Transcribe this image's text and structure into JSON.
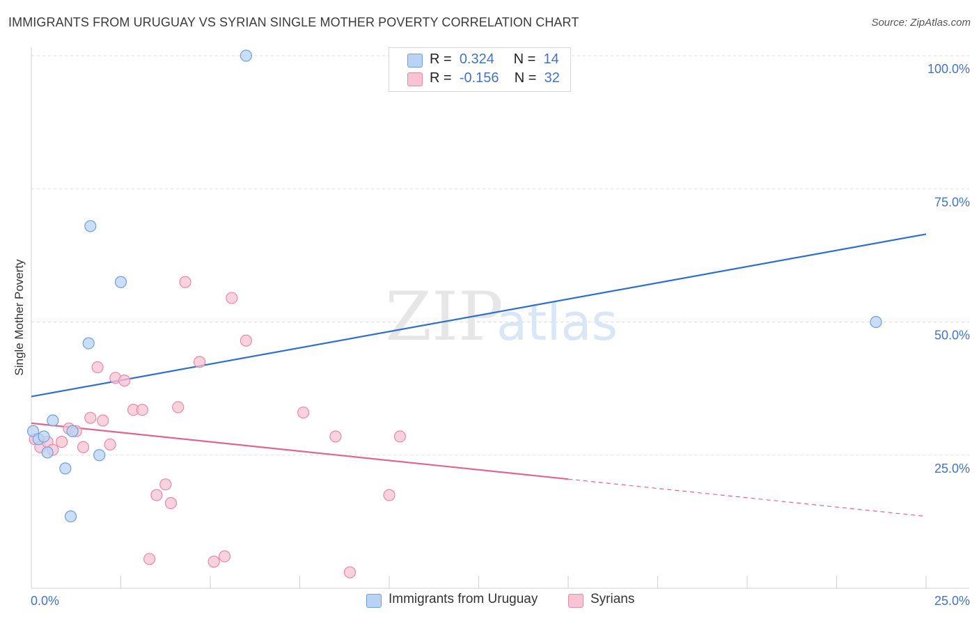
{
  "title": "IMMIGRANTS FROM URUGUAY VS SYRIAN SINGLE MOTHER POVERTY CORRELATION CHART",
  "source": "Source: ZipAtlas.com",
  "watermark": {
    "zip": "ZIP",
    "atlas": "atlas"
  },
  "legend": {
    "uruguay": {
      "r_label": "R =",
      "r_value": "0.324",
      "n_label": "N =",
      "n_value": "14"
    },
    "syrians": {
      "r_label": "R =",
      "r_value": "-0.156",
      "n_label": "N =",
      "n_value": "32"
    }
  },
  "colors": {
    "uruguay_fill": "#b9d3f5",
    "uruguay_stroke": "#6e9fd8",
    "uruguay_line": "#2f6fcb",
    "syrians_fill": "#f8c3d3",
    "syrians_stroke": "#e58aa6",
    "syrians_line": "#e0648f",
    "tick_label": "#4472c4",
    "grid": "#dddddd"
  },
  "chart_data": {
    "type": "scatter",
    "xlabel": "",
    "ylabel": "Single Mother Poverty",
    "xlim": [
      0,
      25
    ],
    "ylim": [
      0,
      100
    ],
    "x_tick_labels": [
      "0.0%",
      "25.0%"
    ],
    "y_ticks": [
      25,
      50,
      75,
      100
    ],
    "y_tick_labels": [
      "25.0%",
      "50.0%",
      "75.0%",
      "100.0%"
    ],
    "series": [
      {
        "name": "Immigrants from Uruguay",
        "color_key": "uruguay",
        "points": [
          [
            0.05,
            29.5
          ],
          [
            0.2,
            28.0
          ],
          [
            0.35,
            28.5
          ],
          [
            0.45,
            25.5
          ],
          [
            0.6,
            31.5
          ],
          [
            0.95,
            22.5
          ],
          [
            1.15,
            29.5
          ],
          [
            1.1,
            13.5
          ],
          [
            1.6,
            46.0
          ],
          [
            1.65,
            68.0
          ],
          [
            1.9,
            25.0
          ],
          [
            2.5,
            57.5
          ],
          [
            6.0,
            100.0
          ],
          [
            23.6,
            50.0
          ]
        ],
        "trend": {
          "x0": 0,
          "y0": 36.0,
          "x1": 25,
          "y1": 66.5,
          "solid_to": 25
        }
      },
      {
        "name": "Syrians",
        "color_key": "syrians",
        "points": [
          [
            0.1,
            28.0
          ],
          [
            0.25,
            26.5
          ],
          [
            0.45,
            27.5
          ],
          [
            0.6,
            26.0
          ],
          [
            0.85,
            27.5
          ],
          [
            1.05,
            30.0
          ],
          [
            1.25,
            29.5
          ],
          [
            1.45,
            26.5
          ],
          [
            1.65,
            32.0
          ],
          [
            1.85,
            41.5
          ],
          [
            2.0,
            31.5
          ],
          [
            2.2,
            27.0
          ],
          [
            2.35,
            39.5
          ],
          [
            2.6,
            39.0
          ],
          [
            2.85,
            33.5
          ],
          [
            3.1,
            33.5
          ],
          [
            3.3,
            5.5
          ],
          [
            3.5,
            17.5
          ],
          [
            3.75,
            19.5
          ],
          [
            3.9,
            16.0
          ],
          [
            4.1,
            34.0
          ],
          [
            4.3,
            57.5
          ],
          [
            4.7,
            42.5
          ],
          [
            5.1,
            5.0
          ],
          [
            5.4,
            6.0
          ],
          [
            5.6,
            54.5
          ],
          [
            6.0,
            46.5
          ],
          [
            7.6,
            33.0
          ],
          [
            8.5,
            28.5
          ],
          [
            8.9,
            3.0
          ],
          [
            10.0,
            17.5
          ],
          [
            10.3,
            28.5
          ]
        ],
        "trend": {
          "x0": 0,
          "y0": 31.0,
          "x1": 25,
          "y1": 13.5,
          "solid_to": 15
        }
      }
    ]
  },
  "bottom_legend": {
    "uruguay": "Immigrants from Uruguay",
    "syrians": "Syrians"
  }
}
